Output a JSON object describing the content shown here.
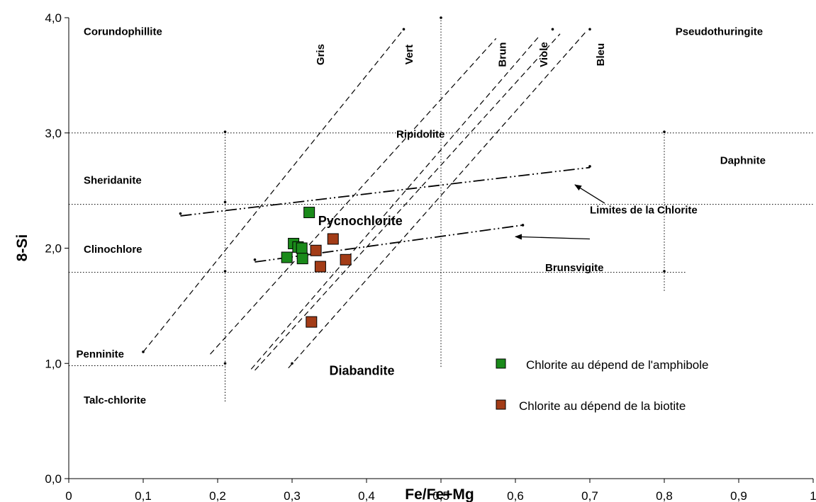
{
  "chart_data": {
    "type": "scatter",
    "title": "",
    "xlabel": "Fe/Fe+Mg",
    "ylabel": "8-Si",
    "xlim": [
      0,
      1
    ],
    "ylim": [
      0,
      4
    ],
    "x_ticks": [
      "0",
      "0,1",
      "0,2",
      "0,3",
      "0,4",
      "0,5",
      "0,6",
      "0,7",
      "0,8",
      "0,9",
      "1"
    ],
    "y_ticks": [
      "0,0",
      "1,0",
      "2,0",
      "3,0",
      "4,0"
    ],
    "legend_position": "bottom-right",
    "series": [
      {
        "name": "Chlorite au dépend de l'amphibole",
        "color": "#1a8a1a",
        "marker": "square",
        "points": [
          [
            0.323,
            2.31
          ],
          [
            0.302,
            2.04
          ],
          [
            0.308,
            2.01
          ],
          [
            0.313,
            2.0
          ],
          [
            0.293,
            1.92
          ],
          [
            0.314,
            1.91
          ]
        ]
      },
      {
        "name": "Chlorite au dépend de la biotite",
        "color": "#a33c17",
        "marker": "square",
        "points": [
          [
            0.355,
            2.08
          ],
          [
            0.332,
            1.98
          ],
          [
            0.338,
            1.84
          ],
          [
            0.372,
            1.9
          ],
          [
            0.326,
            1.36
          ]
        ]
      }
    ],
    "region_labels": [
      {
        "text": "Corundophillite",
        "x": 0.02,
        "y": 3.85,
        "size": "normal"
      },
      {
        "text": "Pseudothuringite",
        "x": 0.815,
        "y": 3.85,
        "size": "normal"
      },
      {
        "text": "Sheridanite",
        "x": 0.02,
        "y": 2.56,
        "size": "normal"
      },
      {
        "text": "Ripidolite",
        "x": 0.44,
        "y": 2.96,
        "size": "normal"
      },
      {
        "text": "Daphnite",
        "x": 0.875,
        "y": 2.73,
        "size": "normal"
      },
      {
        "text": "Pycnochlorite",
        "x": 0.335,
        "y": 2.2,
        "size": "big"
      },
      {
        "text": "Clinochlore",
        "x": 0.02,
        "y": 1.96,
        "size": "normal"
      },
      {
        "text": "Brunsvigite",
        "x": 0.64,
        "y": 1.8,
        "size": "normal"
      },
      {
        "text": "Penninite",
        "x": 0.01,
        "y": 1.05,
        "size": "normal"
      },
      {
        "text": "Diabandite",
        "x": 0.35,
        "y": 0.9,
        "size": "big"
      },
      {
        "text": "Talc-chlorite",
        "x": 0.02,
        "y": 0.65,
        "size": "normal"
      },
      {
        "text": "Limites de la Chlorite",
        "x": 0.7,
        "y": 2.3,
        "size": "normal"
      }
    ],
    "diagonal_labels": [
      {
        "text": "Gris",
        "x": 0.343,
        "y": 3.68
      },
      {
        "text": "Vert",
        "x": 0.462,
        "y": 3.68
      },
      {
        "text": "Brun",
        "x": 0.587,
        "y": 3.68
      },
      {
        "text": "Viole",
        "x": 0.643,
        "y": 3.68
      },
      {
        "text": "Bleu",
        "x": 0.719,
        "y": 3.68
      }
    ],
    "vertical_boundaries": [
      {
        "x": 0.21,
        "y1": 0.67,
        "y2": 3.01
      },
      {
        "x": 0.5,
        "y1": 0.97,
        "y2": 4.0
      },
      {
        "x": 0.8,
        "y1": 1.63,
        "y2": 3.01
      }
    ],
    "horizontal_boundaries": [
      {
        "y": 3.0,
        "x1": 0.0,
        "x2": 1.0
      },
      {
        "y": 2.38,
        "x1": 0.0,
        "x2": 1.0
      },
      {
        "y": 1.79,
        "x1": 0.0,
        "x2": 0.83
      },
      {
        "y": 0.98,
        "x1": 0.0,
        "x2": 0.21
      }
    ],
    "diagonal_lines": [
      {
        "x1": 0.1,
        "y1": 1.1,
        "x2": 0.45,
        "y2": 3.9
      },
      {
        "x1": 0.19,
        "y1": 1.08,
        "x2": 0.574,
        "y2": 3.82
      },
      {
        "x1": 0.245,
        "y1": 0.95,
        "x2": 0.632,
        "y2": 3.84
      },
      {
        "x1": 0.25,
        "y1": 0.94,
        "x2": 0.66,
        "y2": 3.86
      },
      {
        "x1": 0.295,
        "y1": 0.96,
        "x2": 0.695,
        "y2": 3.88
      }
    ],
    "chlorite_limits": [
      {
        "x1": 0.15,
        "y1": 2.28,
        "x2": 0.7,
        "y2": 2.7
      },
      {
        "x1": 0.25,
        "y1": 1.88,
        "x2": 0.61,
        "y2": 2.2
      }
    ],
    "boundary_points": [
      [
        0.21,
        3.01
      ],
      [
        0.21,
        2.4
      ],
      [
        0.21,
        1.8
      ],
      [
        0.21,
        1.0
      ],
      [
        0.5,
        4.0
      ],
      [
        0.45,
        3.9
      ],
      [
        0.65,
        3.9
      ],
      [
        0.7,
        3.9
      ],
      [
        0.8,
        3.01
      ],
      [
        0.8,
        1.8
      ],
      [
        0.15,
        2.3
      ],
      [
        0.7,
        2.71
      ],
      [
        0.25,
        1.9
      ],
      [
        0.61,
        2.2
      ],
      [
        0.3,
        1.0
      ],
      [
        0.1,
        1.1
      ]
    ],
    "arrows": [
      {
        "x1": 0.72,
        "y1": 2.39,
        "x2": 0.68,
        "y2": 2.55
      },
      {
        "x1": 0.7,
        "y1": 2.08,
        "x2": 0.6,
        "y2": 2.1
      }
    ]
  }
}
